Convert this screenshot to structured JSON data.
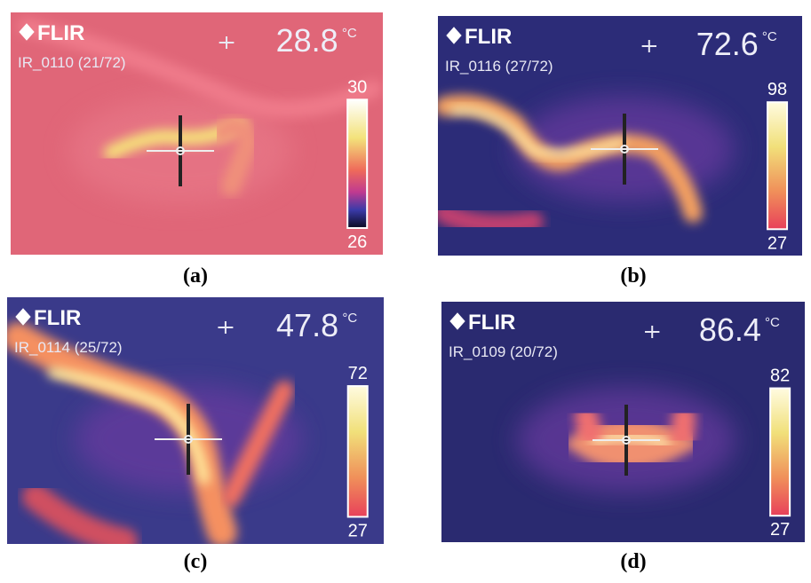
{
  "panels": [
    {
      "logo": "FLIR",
      "temperature": "28.8",
      "unit": "°C",
      "file": "IR_0110 (21/72)",
      "scale_max": "30",
      "scale_min": "26",
      "caption": "(a)"
    },
    {
      "logo": "FLIR",
      "temperature": "72.6",
      "unit": "°C",
      "file": "IR_0116 (27/72)",
      "scale_max": "98",
      "scale_min": "27",
      "caption": "(b)"
    },
    {
      "logo": "FLIR",
      "temperature": "47.8",
      "unit": "°C",
      "file": "IR_0114 (25/72)",
      "scale_max": "72",
      "scale_min": "27",
      "caption": "(c)"
    },
    {
      "logo": "FLIR",
      "temperature": "86.4",
      "unit": "°C",
      "file": "IR_0109 (20/72)",
      "scale_max": "82",
      "scale_min": "27",
      "caption": "(d)"
    }
  ]
}
